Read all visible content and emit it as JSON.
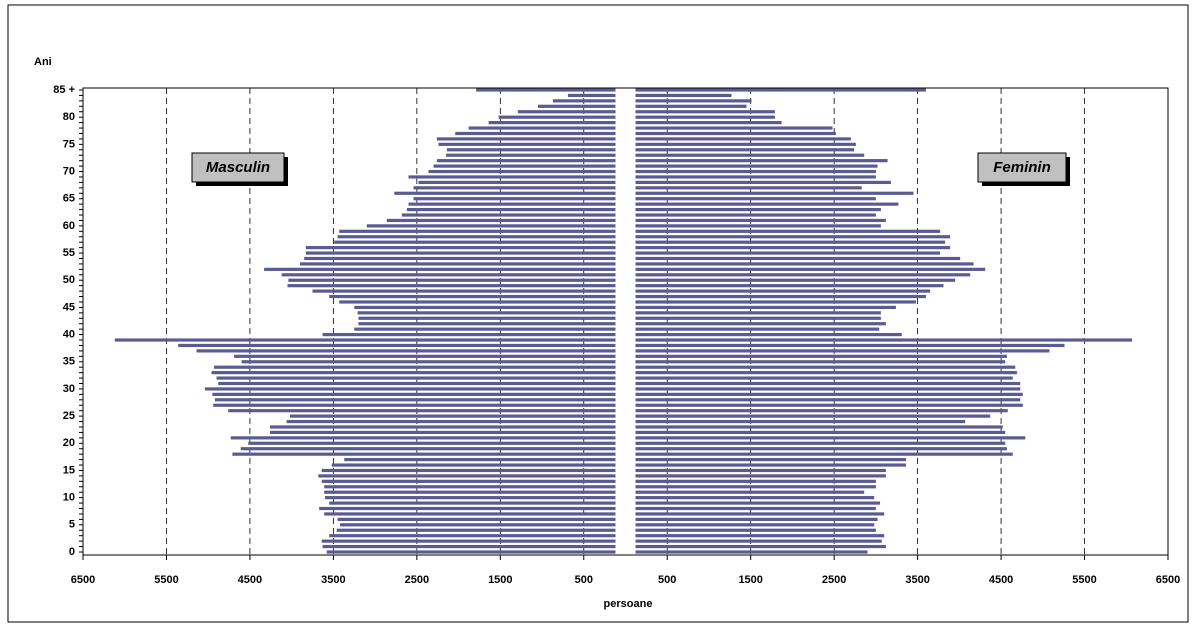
{
  "chart_data": {
    "type": "pyramid",
    "y_label": "Ani",
    "x_label": "persoane",
    "categories": [
      "0",
      null,
      null,
      null,
      null,
      "5",
      null,
      null,
      null,
      null,
      "10",
      null,
      null,
      null,
      null,
      "15",
      null,
      null,
      null,
      null,
      "20",
      null,
      null,
      null,
      null,
      "25",
      null,
      null,
      null,
      null,
      "30",
      null,
      null,
      null,
      null,
      "35",
      null,
      null,
      null,
      null,
      "40",
      null,
      null,
      null,
      null,
      "45",
      null,
      null,
      null,
      null,
      "50",
      null,
      null,
      null,
      null,
      "55",
      null,
      null,
      null,
      null,
      "60",
      null,
      null,
      null,
      null,
      "65",
      null,
      null,
      null,
      null,
      "70",
      null,
      null,
      null,
      null,
      "75",
      null,
      null,
      null,
      null,
      "80",
      null,
      null,
      null,
      null,
      "85 +"
    ],
    "series": [
      {
        "name": "Masculin",
        "color": "#5b5b93",
        "side": "left",
        "values": [
          3580,
          3630,
          3640,
          3550,
          3460,
          3420,
          3450,
          3610,
          3670,
          3550,
          3600,
          3610,
          3610,
          3640,
          3680,
          3640,
          3520,
          3370,
          4710,
          4610,
          4520,
          4730,
          4260,
          4260,
          4060,
          4020,
          4760,
          4940,
          4920,
          4950,
          5040,
          4880,
          4900,
          4960,
          4930,
          4600,
          4690,
          5140,
          5360,
          6120,
          3630,
          3250,
          3200,
          3200,
          3210,
          3250,
          3430,
          3550,
          3750,
          4050,
          4040,
          4120,
          4330,
          3900,
          3850,
          3830,
          3830,
          3490,
          3450,
          3430,
          3100,
          2860,
          2680,
          2620,
          2600,
          2540,
          2770,
          2540,
          2480,
          2600,
          2360,
          2300,
          2260,
          2150,
          2140,
          2240,
          2260,
          2040,
          1880,
          1640,
          1520,
          1290,
          1050,
          870,
          690,
          1790
        ]
      },
      {
        "name": "Feminin",
        "color": "#5b5b93",
        "side": "right",
        "values": [
          2900,
          3120,
          3070,
          3100,
          3000,
          2980,
          3020,
          3100,
          3000,
          3050,
          2980,
          2860,
          3000,
          3000,
          3120,
          3120,
          3360,
          3360,
          4640,
          4570,
          4550,
          4790,
          4550,
          4520,
          4070,
          4370,
          4580,
          4760,
          4730,
          4760,
          4730,
          4730,
          4640,
          4690,
          4670,
          4550,
          4570,
          5080,
          5260,
          6070,
          3310,
          3040,
          3120,
          3060,
          3060,
          3240,
          3480,
          3600,
          3650,
          3810,
          3950,
          4130,
          4310,
          4170,
          4010,
          3770,
          3890,
          3830,
          3890,
          3770,
          3060,
          3120,
          3000,
          3060,
          3270,
          3000,
          3450,
          2830,
          3180,
          3000,
          3000,
          3020,
          3140,
          2860,
          2740,
          2760,
          2700,
          2520,
          2480,
          1870,
          1790,
          1790,
          1450,
          1510,
          1270,
          3600
        ]
      }
    ],
    "xlim": [
      -6500,
      6500
    ],
    "xticks": [
      {
        "value": -6500,
        "label": "6500"
      },
      {
        "value": -5500,
        "label": "5500"
      },
      {
        "value": -4500,
        "label": "4500"
      },
      {
        "value": -3500,
        "label": "3500"
      },
      {
        "value": -2500,
        "label": "2500"
      },
      {
        "value": -1500,
        "label": "1500"
      },
      {
        "value": -500,
        "label": "500"
      },
      500,
      1500,
      2500,
      3500,
      4500,
      5500,
      6500
    ],
    "grid": true
  }
}
